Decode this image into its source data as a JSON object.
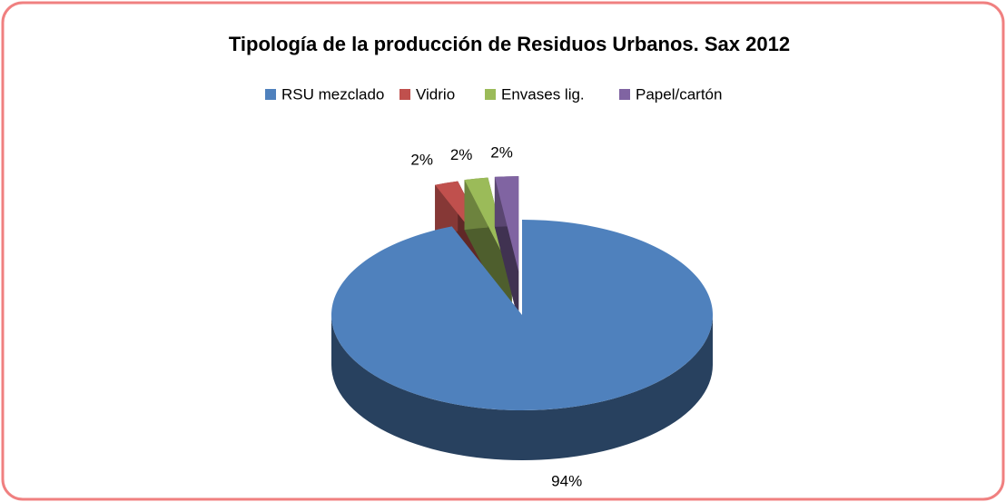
{
  "chart_data": {
    "type": "pie",
    "title": "Tipología de la producción de Residuos Urbanos. Sax 2012",
    "categories": [
      "RSU mezclado",
      "Vidrio",
      "Envases lig.",
      "Papel/cartón"
    ],
    "values": [
      94,
      2,
      2,
      2
    ],
    "value_labels": [
      "94%",
      "2%",
      "2%",
      "2%"
    ],
    "colors": [
      "#4f81bd",
      "#c0504d",
      "#9bbb59",
      "#8064a2"
    ],
    "legend": "top"
  }
}
